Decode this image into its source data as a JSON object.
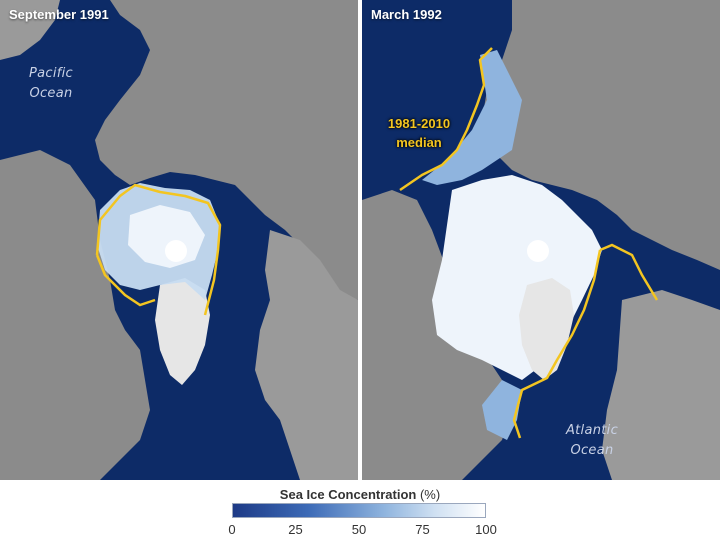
{
  "panels": [
    {
      "title": "September 1991"
    },
    {
      "title": "March 1992"
    }
  ],
  "labels": {
    "pacific_line1": "Pacific",
    "pacific_line2": "Ocean",
    "atlantic_line1": "Atlantic",
    "atlantic_line2": "Ocean",
    "median_line1": "1981-2010",
    "median_line2": "median"
  },
  "legend": {
    "title_bold": "Sea Ice Concentration",
    "title_unit": "(%)",
    "ticks": [
      "0",
      "25",
      "50",
      "75",
      "100"
    ]
  },
  "colors": {
    "ocean": "#0d2b67",
    "land": "#8b8b8b",
    "ice": "#eef4fb",
    "median_line": "#f3c521",
    "greenland": "#e6e6e6"
  }
}
